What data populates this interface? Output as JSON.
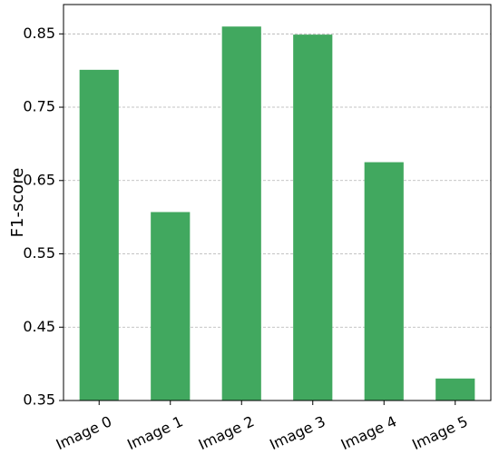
{
  "chart_data": {
    "type": "bar",
    "title": "",
    "xlabel": "",
    "ylabel": "F1-score",
    "categories": [
      "Image 0",
      "Image 1",
      "Image 2",
      "Image 3",
      "Image 4",
      "Image 5"
    ],
    "values": [
      0.801,
      0.607,
      0.86,
      0.849,
      0.675,
      0.38
    ],
    "ylim": [
      0.35,
      0.89
    ],
    "yticks": [
      0.35,
      0.45,
      0.55,
      0.65,
      0.75,
      0.85
    ],
    "ytick_labels": [
      "0.35",
      "0.45",
      "0.55",
      "0.65",
      "0.75",
      "0.85"
    ],
    "grid": "y-dashed",
    "legend": "none",
    "bar_color": "#41a85f"
  }
}
